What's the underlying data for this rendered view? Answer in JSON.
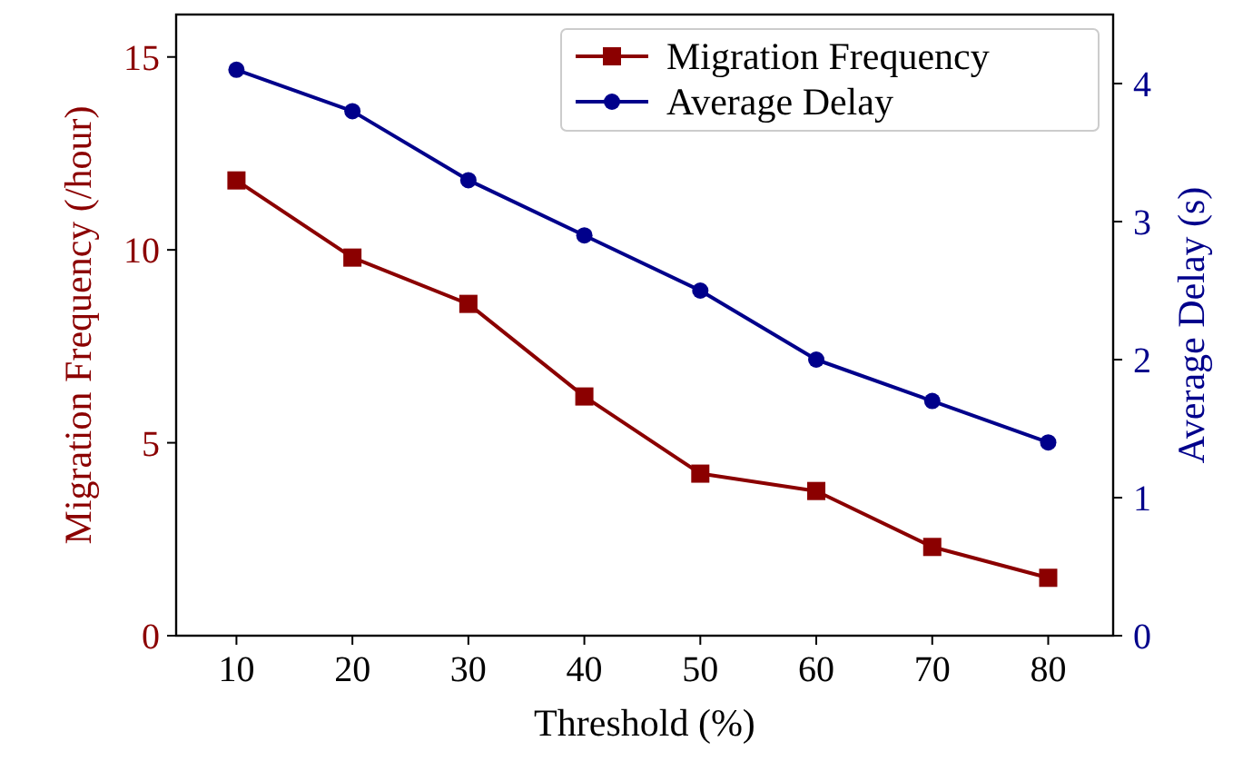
{
  "chart_data": {
    "type": "line",
    "xlabel": "Threshold (%)",
    "ylabel": "Migration Frequency (/hour)",
    "y2label": "Average Delay (s)",
    "x": [
      10,
      20,
      30,
      40,
      50,
      60,
      70,
      80
    ],
    "xlim": [
      4.8,
      85.6
    ],
    "xticks": [
      10,
      20,
      30,
      40,
      50,
      60,
      70,
      80
    ],
    "ylim": [
      0,
      16.1
    ],
    "yticks": [
      0,
      5,
      10,
      15
    ],
    "y2lim": [
      0,
      4.5
    ],
    "y2ticks": [
      0,
      1,
      2,
      3,
      4
    ],
    "series": [
      {
        "name": "Migration Frequency",
        "color": "#8b0000",
        "marker": "square",
        "values": [
          11.8,
          9.8,
          8.6,
          6.2,
          4.2,
          3.75,
          2.3,
          1.5
        ]
      },
      {
        "name": "Average Delay",
        "color": "#00008b",
        "marker": "circle",
        "axis": "y2",
        "values": [
          4.1,
          3.8,
          3.3,
          2.9,
          2.5,
          2.0,
          1.7,
          1.4
        ]
      }
    ],
    "legend": "top right",
    "grid": false
  }
}
